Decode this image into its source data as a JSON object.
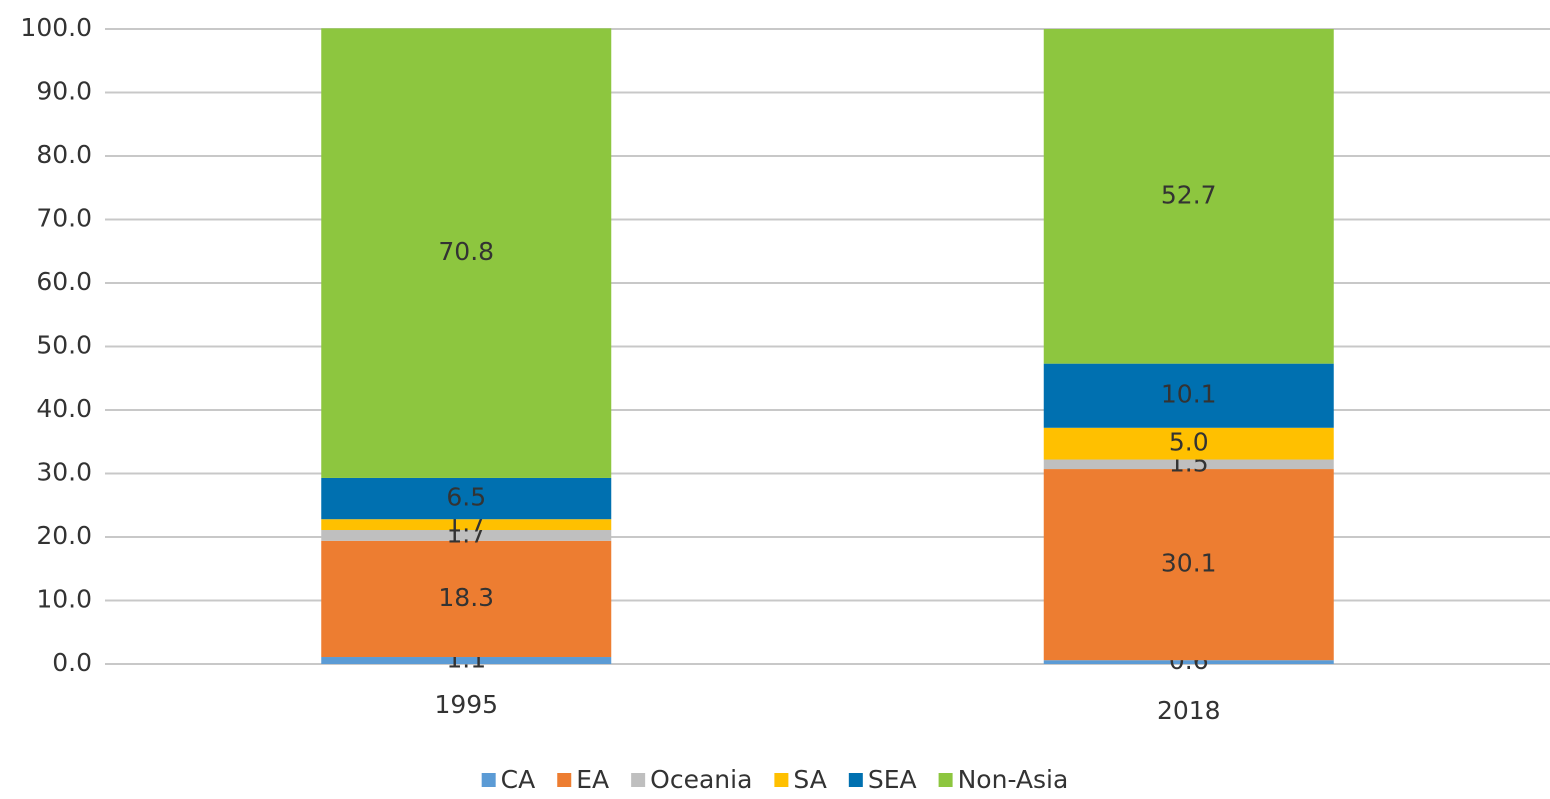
{
  "chart_data": {
    "type": "stacked_bar",
    "categories": [
      "1995",
      "2018"
    ],
    "series": [
      {
        "name": "CA",
        "color": "#5b9bd5",
        "values": [
          1.1,
          0.6
        ]
      },
      {
        "name": "EA",
        "color": "#ed7d31",
        "values": [
          18.3,
          30.1
        ]
      },
      {
        "name": "Oceania",
        "color": "#bfbfbf",
        "values": [
          1.7,
          1.5
        ]
      },
      {
        "name": "SA",
        "color": "#ffc000",
        "values": [
          1.7,
          5.0
        ],
        "value_labels": [
          "1.7",
          "5.0"
        ]
      },
      {
        "name": "SEA",
        "color": "#0070b0",
        "values": [
          6.5,
          10.1
        ]
      },
      {
        "name": "Non-Asia",
        "color": "#8dc63f",
        "values": [
          70.8,
          52.7
        ]
      }
    ],
    "ylim": [
      0,
      100
    ],
    "yticks": [
      {
        "value": 0,
        "label": "0.0"
      },
      {
        "value": 10,
        "label": "10.0"
      },
      {
        "value": 20,
        "label": "20.0"
      },
      {
        "value": 30,
        "label": "30.0"
      },
      {
        "value": 40,
        "label": "40.0"
      },
      {
        "value": 50,
        "label": "50.0"
      },
      {
        "value": 60,
        "label": "60.0"
      },
      {
        "value": 70,
        "label": "70.0"
      },
      {
        "value": 80,
        "label": "80.0"
      },
      {
        "value": 90,
        "label": "90.0"
      },
      {
        "value": 100,
        "label": "100.0"
      }
    ],
    "grid": true,
    "legend": "bottom"
  }
}
